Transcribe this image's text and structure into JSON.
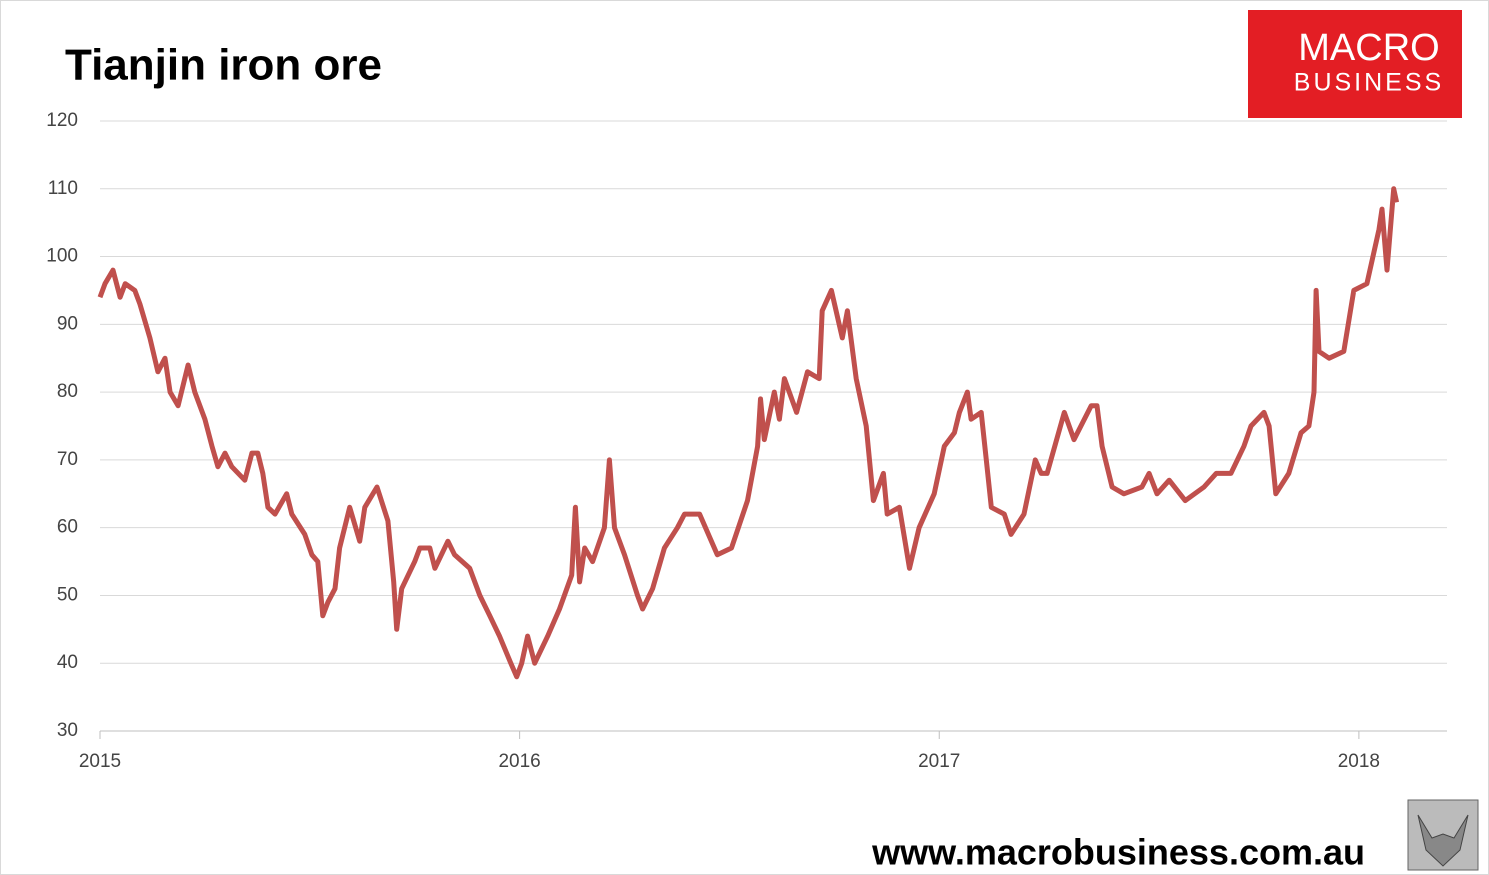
{
  "chart_data": {
    "type": "line",
    "title": "Tianjin iron ore",
    "x": [
      2015,
      2015.012,
      2015.031,
      2015.048,
      2015.06,
      2015.083,
      2015.095,
      2015.119,
      2015.138,
      2015.155,
      2015.167,
      2015.186,
      2015.21,
      2015.226,
      2015.25,
      2015.267,
      2015.281,
      2015.298,
      2015.314,
      2015.345,
      2015.362,
      2015.376,
      2015.388,
      2015.4,
      2015.417,
      2015.445,
      2015.457,
      2015.488,
      2015.505,
      2015.519,
      2015.531,
      2015.543,
      2015.56,
      2015.571,
      2015.595,
      2015.619,
      2015.631,
      2015.66,
      2015.686,
      2015.7,
      2015.707,
      2015.719,
      2015.75,
      2015.762,
      2015.786,
      2015.798,
      2015.829,
      2015.845,
      2015.881,
      2015.905,
      2015.929,
      2015.952,
      2015.979,
      2015.993,
      2016.005,
      2016.019,
      2016.036,
      2016.067,
      2016.095,
      2016.124,
      2016.133,
      2016.143,
      2016.155,
      2016.174,
      2016.202,
      2016.214,
      2016.226,
      2016.25,
      2016.281,
      2016.293,
      2016.317,
      2016.345,
      2016.376,
      2016.393,
      2016.429,
      2016.471,
      2016.505,
      2016.543,
      2016.567,
      2016.574,
      2016.583,
      2016.607,
      2016.619,
      2016.631,
      2016.66,
      2016.686,
      2016.714,
      2016.721,
      2016.743,
      2016.769,
      2016.781,
      2016.802,
      2016.826,
      2016.843,
      2016.867,
      2016.876,
      2016.905,
      2016.929,
      2016.952,
      2016.988,
      2017.012,
      2017.036,
      2017.048,
      2017.067,
      2017.076,
      2017.1,
      2017.112,
      2017.124,
      2017.155,
      2017.171,
      2017.202,
      2017.229,
      2017.243,
      2017.257,
      2017.298,
      2017.321,
      2017.362,
      2017.376,
      2017.388,
      2017.412,
      2017.44,
      2017.483,
      2017.5,
      2017.519,
      2017.548,
      2017.586,
      2017.631,
      2017.66,
      2017.695,
      2017.726,
      2017.743,
      2017.774,
      2017.786,
      2017.802,
      2017.833,
      2017.862,
      2017.881,
      2017.893,
      2017.898,
      2017.905,
      2017.929,
      2017.964,
      2017.988,
      2018.019,
      2018.048,
      2018.055,
      2018.067,
      2018.083,
      2018.09
    ],
    "series": [
      {
        "name": "Tianjin iron ore",
        "color": "#c0504d",
        "values": [
          94,
          96,
          98,
          94,
          96,
          95,
          93,
          88,
          83,
          85,
          80,
          78,
          84,
          80,
          76,
          72,
          69,
          71,
          69,
          67,
          71,
          71,
          68,
          63,
          62,
          65,
          62,
          59,
          56,
          55,
          47,
          49,
          51,
          57,
          63,
          58,
          63,
          66,
          61,
          52,
          45,
          51,
          55,
          57,
          57,
          54,
          58,
          56,
          54,
          50,
          47,
          44,
          40,
          38,
          40,
          44,
          40,
          44,
          48,
          53,
          63,
          52,
          57,
          55,
          60,
          70,
          60,
          56,
          50,
          48,
          51,
          57,
          60,
          62,
          62,
          56,
          57,
          64,
          72,
          79,
          73,
          80,
          76,
          82,
          77,
          83,
          82,
          92,
          95,
          88,
          92,
          82,
          75,
          64,
          68,
          62,
          63,
          54,
          60,
          65,
          72,
          74,
          77,
          80,
          76,
          77,
          70,
          63,
          62,
          59,
          62,
          70,
          68,
          68,
          77,
          73,
          78,
          78,
          72,
          66,
          65,
          66,
          68,
          65,
          67,
          64,
          66,
          68,
          68,
          72,
          75,
          77,
          75,
          65,
          68,
          74,
          75,
          80,
          95,
          86,
          85,
          86,
          95,
          96,
          104,
          107,
          98,
          110,
          108
        ]
      }
    ],
    "xlim": [
      2015,
      2018.21
    ],
    "xticks": [
      2015,
      2016,
      2017,
      2018
    ],
    "ylim": [
      30,
      120
    ],
    "yticks": [
      30,
      40,
      50,
      60,
      70,
      80,
      90,
      100,
      110,
      120
    ],
    "grid": true
  },
  "logo": {
    "line1": "MACRO",
    "line2": "BUSINESS"
  },
  "website": "www.macrobusiness.com.au"
}
